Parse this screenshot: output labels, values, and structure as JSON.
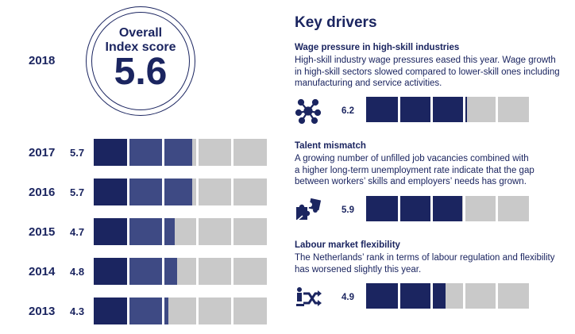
{
  "overall": {
    "year": "2018",
    "label_line1": "Overall",
    "label_line2": "Index score",
    "value": "5.6"
  },
  "history_segments": 5,
  "history": [
    {
      "year": "2017",
      "value": "5.7",
      "score": 5.7
    },
    {
      "year": "2016",
      "value": "5.7",
      "score": 5.7
    },
    {
      "year": "2015",
      "value": "4.7",
      "score": 4.7
    },
    {
      "year": "2014",
      "value": "4.8",
      "score": 4.8
    },
    {
      "year": "2013",
      "value": "4.3",
      "score": 4.3
    }
  ],
  "key_drivers": {
    "title": "Key drivers",
    "items": [
      {
        "title": "Wage pressure in high-skill industries",
        "lines": [
          "High-skill industry wage pressures eased this year. Wage growth",
          "in high-skill sectors slowed compared to lower-skill ones including",
          "manufacturing and service activities."
        ],
        "icon": "network-icon",
        "value": "6.2",
        "score": 6.2
      },
      {
        "title": "Talent mismatch",
        "lines": [
          "A growing number of unfilled job vacancies combined with",
          "a higher long-term unemployment rate indicate that the gap",
          "between workers’ skills and employers’ needs has grown."
        ],
        "icon": "puzzle-icon",
        "value": "5.9",
        "score": 5.9
      },
      {
        "title": "Labour market flexibility",
        "lines": [
          "The Netherlands’ rank in terms of labour regulation and flexibility",
          "has worsened slightly this year."
        ],
        "icon": "shuffle-icon",
        "value": "4.9",
        "score": 4.9
      }
    ]
  },
  "chart_data": {
    "type": "bar",
    "categories": [
      "2017",
      "2016",
      "2015",
      "2014",
      "2013",
      "Wage pressure in high-skill industries",
      "Talent mismatch",
      "Labour market flexibility"
    ],
    "values": [
      5.7,
      5.7,
      4.7,
      4.8,
      4.3,
      6.2,
      5.9,
      4.9
    ],
    "title": "Overall Index score",
    "xlim": [
      0,
      10
    ],
    "colors": {
      "dark": "#1b2560",
      "mid": "#3e4a84",
      "track": "#c9c9c9"
    }
  }
}
